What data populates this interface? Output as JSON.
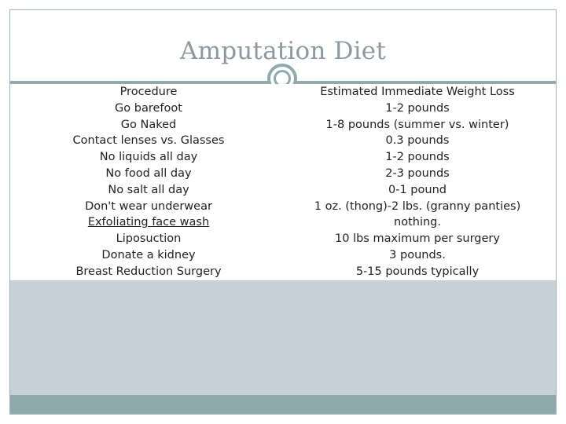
{
  "slide": {
    "title": "Amputation Diet",
    "procedures": [
      "Procedure",
      "Go barefoot",
      "Go Naked",
      "Contact lenses vs. Glasses",
      "No liquids all day",
      "No food all day",
      "No salt all day",
      "Don't wear underwear",
      "Exfoliating face wash",
      "Liposuction",
      "Donate a kidney",
      "Breast Reduction Surgery"
    ],
    "weight_loss": [
      "Estimated Immediate Weight Loss",
      "1-2 pounds",
      "1-8 pounds (summer vs. winter)",
      "0.3 pounds",
      "1-2 pounds",
      "2-3 pounds",
      "0-1 pound",
      "1 oz. (thong)-2 lbs. (granny panties)",
      "nothing.",
      "10 lbs maximum per surgery",
      "3 pounds.",
      "5-15 pounds typically"
    ]
  },
  "colors": {
    "background": "#c5d1d6",
    "accent": "#8eaaad",
    "title": "#8a9aa4"
  }
}
